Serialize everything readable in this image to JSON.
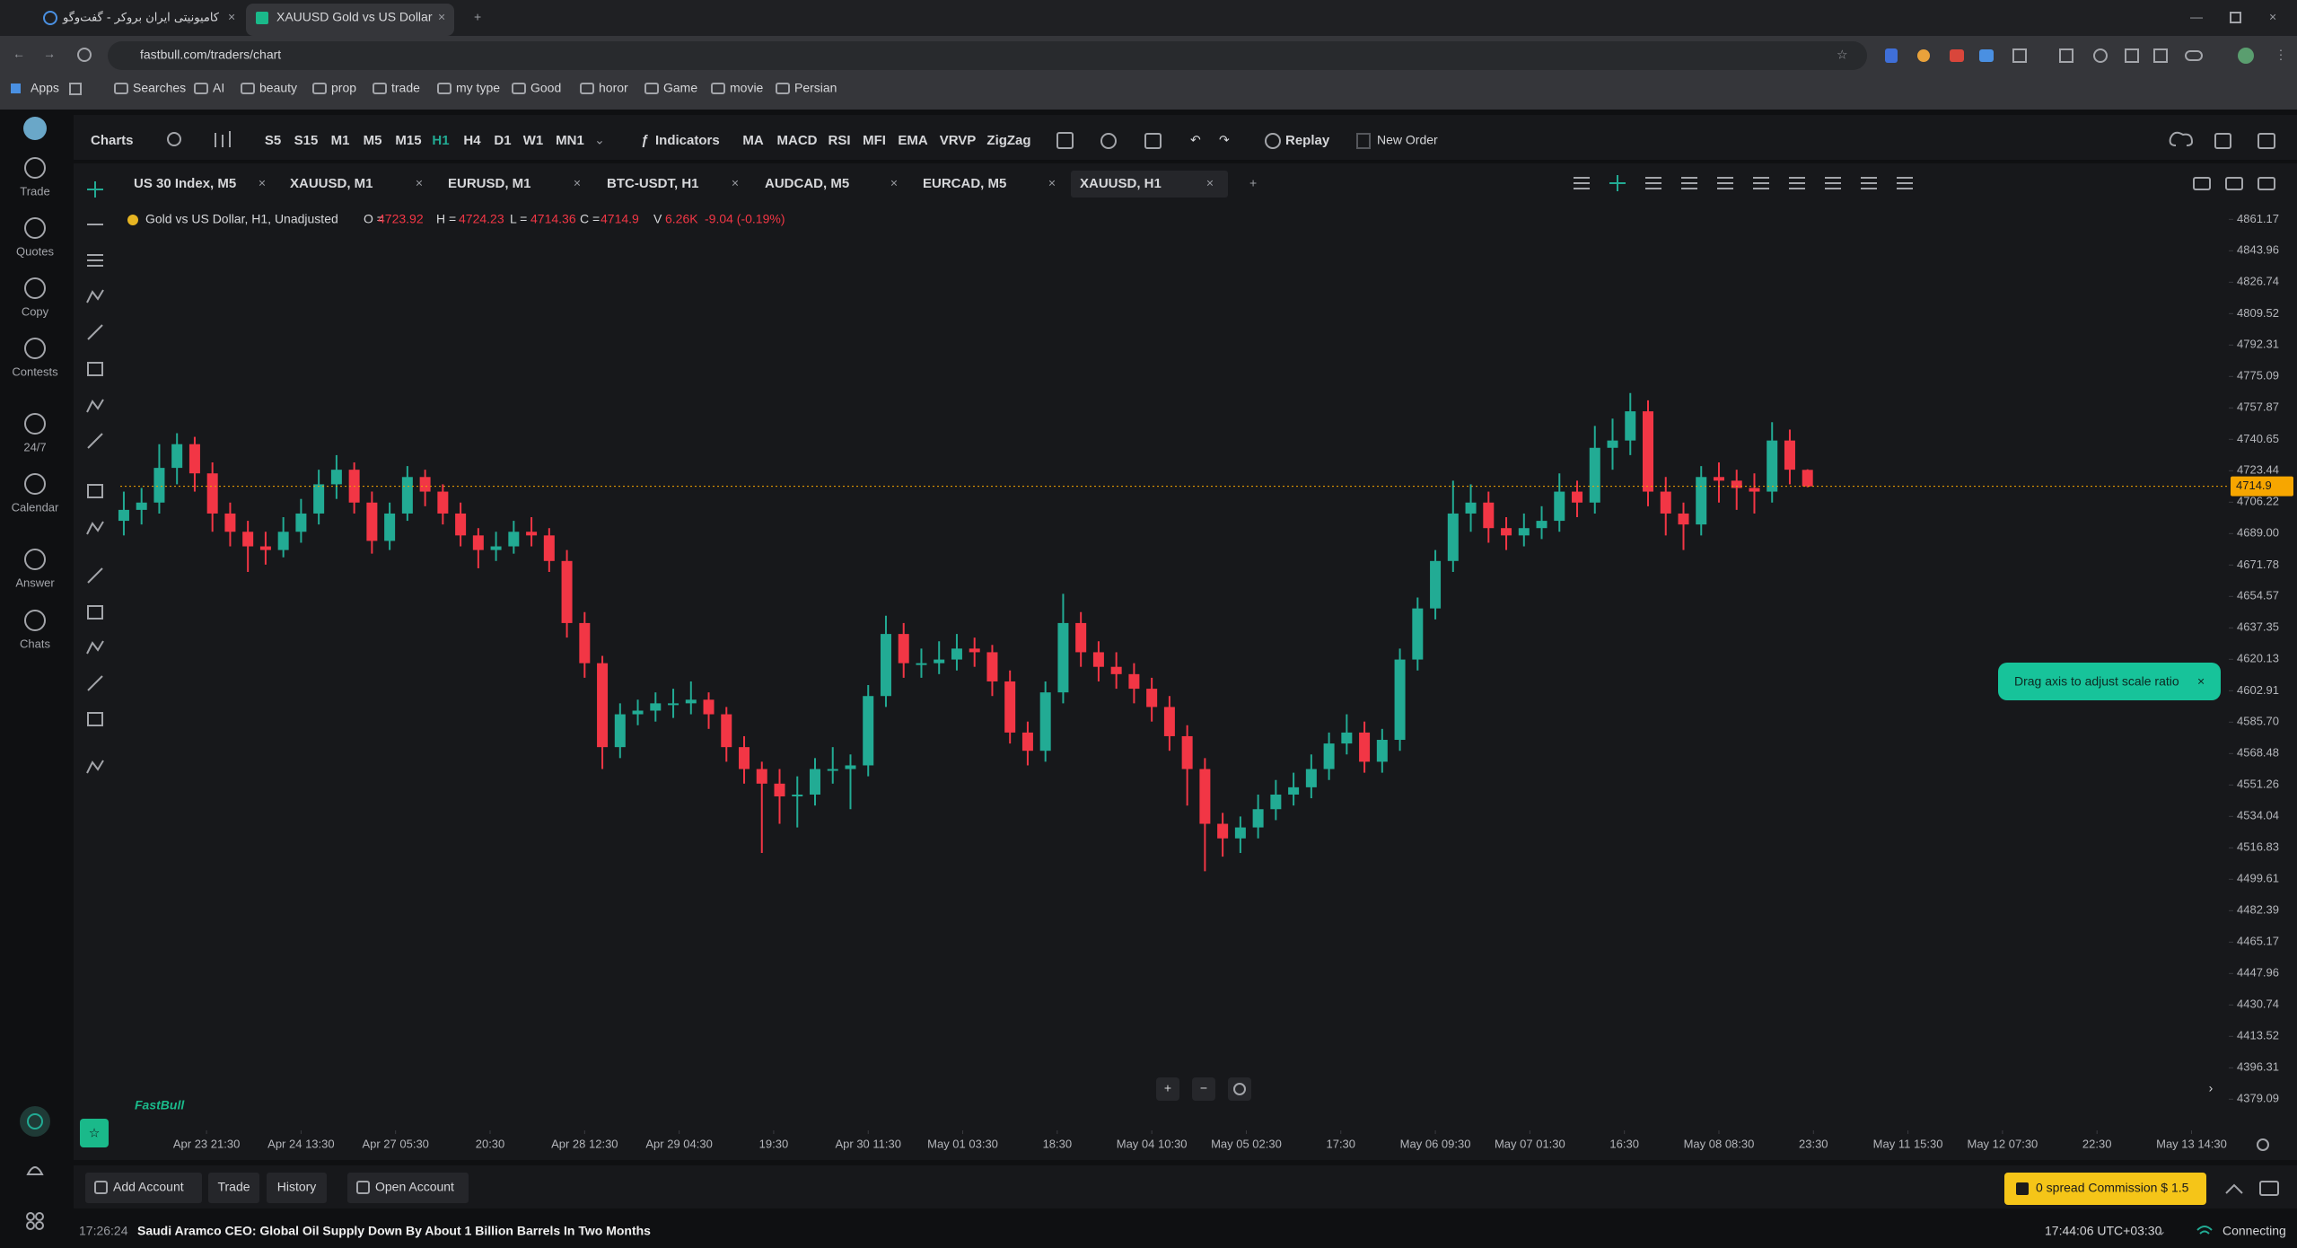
{
  "browser": {
    "tabs": [
      "کامیونیتی ایران بروکر - گفت‌وگو",
      "XAUUSD Gold vs US Dollar"
    ],
    "url": "fastbull.com/traders/chart",
    "bookmarks": [
      "Apps",
      "Searches",
      "AI",
      "beauty",
      "prop",
      "trade",
      "my type",
      "Good",
      "horor",
      "Game",
      "movie",
      "Persian"
    ]
  },
  "sidebar": [
    "Trade",
    "Quotes",
    "Copy",
    "Contests",
    "24/7",
    "Calendar",
    "Answer",
    "Chats"
  ],
  "toolbar": {
    "charts": "Charts",
    "timeframes": [
      "S5",
      "S15",
      "M1",
      "M5",
      "M15",
      "H1",
      "H4",
      "D1",
      "W1",
      "MN1"
    ],
    "active_timeframe": "H1",
    "indicators_button": "Indicators",
    "indicators": [
      "MA",
      "MACD",
      "RSI",
      "MFI",
      "EMA",
      "VRVP",
      "ZigZag"
    ],
    "replay": "Replay",
    "new_order": "New Order"
  },
  "chart_tabs": [
    "US 30 Index, M5",
    "XAUUSD, M1",
    "EURUSD, M1",
    "BTC-USDT, H1",
    "AUDCAD, M5",
    "EURCAD, M5",
    "XAUUSD, H1"
  ],
  "chart_data": {
    "type": "candlestick",
    "title": "Gold vs US Dollar, H1, Unadjusted",
    "legend_labels": [
      "O =",
      "H =",
      "L =",
      "C =",
      "V"
    ],
    "volume": "6.26K",
    "change": "-9.04 (-0.19%)",
    "up_color": "#22ab94",
    "down_color": "#f23645",
    "last_price_color": "#f7a600",
    "grid": false,
    "xlim": [
      -14.6,
      342
    ],
    "ylim": [
      4363,
      4869.2
    ],
    "xticks": [
      {
        "value": 0,
        "label": "Apr 23 21:30"
      },
      {
        "value": 16,
        "label": "Apr 24 13:30"
      },
      {
        "value": 32,
        "label": "Apr 27 05:30"
      },
      {
        "value": 48,
        "label": "20:30"
      },
      {
        "value": 64,
        "label": "Apr 28 12:30"
      },
      {
        "value": 80,
        "label": "Apr 29 04:30"
      },
      {
        "value": 96,
        "label": "19:30"
      },
      {
        "value": 112,
        "label": "Apr 30 11:30"
      },
      {
        "value": 128,
        "label": "May 01 03:30"
      },
      {
        "value": 144,
        "label": "18:30"
      },
      {
        "value": 160,
        "label": "May 04 10:30"
      },
      {
        "value": 176,
        "label": "May 05 02:30"
      },
      {
        "value": 192,
        "label": "17:30"
      },
      {
        "value": 208,
        "label": "May 06 09:30"
      },
      {
        "value": 224,
        "label": "May 07 01:30"
      },
      {
        "value": 240,
        "label": "16:30"
      },
      {
        "value": 256,
        "label": "May 08 08:30"
      },
      {
        "value": 272,
        "label": "23:30"
      },
      {
        "value": 288,
        "label": "May 11 15:30"
      },
      {
        "value": 304,
        "label": "May 12 07:30"
      },
      {
        "value": 320,
        "label": "22:30"
      },
      {
        "value": 336,
        "label": "May 13 14:30"
      }
    ],
    "yticks": [
      4861.17,
      4843.96,
      4826.74,
      4809.52,
      4792.31,
      4775.09,
      4757.87,
      4740.65,
      4723.44,
      4706.22,
      {
        "value": 4689,
        "label": "4689.00"
      },
      4671.78,
      4654.57,
      4637.35,
      4620.13,
      4602.91,
      {
        "value": 4585.7,
        "label": "4585.70"
      },
      4568.48,
      4551.26,
      4534.04,
      4516.83,
      4499.61,
      4482.39,
      4465.17,
      4447.96,
      4430.74,
      4413.52,
      4396.31,
      4379.09
    ],
    "x": [
      -14,
      -11,
      -8,
      -5,
      -2,
      1,
      4,
      7,
      10,
      13,
      16,
      19,
      22,
      25,
      28,
      31,
      34,
      37,
      40,
      43,
      46,
      49,
      52,
      55,
      58,
      61,
      64,
      67,
      70,
      73,
      76,
      79,
      82,
      85,
      88,
      91,
      94,
      97,
      100,
      103,
      106,
      109,
      112,
      115,
      118,
      121,
      124,
      127,
      130,
      133,
      136,
      139,
      142,
      145,
      148,
      151,
      154,
      157,
      160,
      163,
      166,
      169,
      172,
      175,
      178,
      181,
      184,
      187,
      190,
      193,
      196,
      199,
      202,
      205,
      208,
      211,
      214,
      217,
      220,
      223,
      226,
      229,
      232,
      235,
      238,
      241,
      244,
      247,
      250,
      253,
      256,
      259,
      262,
      265,
      268,
      271
    ],
    "candles": [
      [
        4696,
        4712,
        4688,
        4702
      ],
      [
        4702,
        4714,
        4694,
        4706
      ],
      [
        4706,
        4738,
        4700,
        4725
      ],
      [
        4725,
        4744,
        4716,
        4738
      ],
      [
        4738,
        4742,
        4712,
        4722
      ],
      [
        4722,
        4728,
        4690,
        4700
      ],
      [
        4700,
        4706,
        4682,
        4690
      ],
      [
        4690,
        4696,
        4668,
        4682
      ],
      [
        4682,
        4690,
        4672,
        4680
      ],
      [
        4680,
        4698,
        4676,
        4690
      ],
      [
        4690,
        4708,
        4684,
        4700
      ],
      [
        4700,
        4724,
        4694,
        4716
      ],
      [
        4716,
        4732,
        4708,
        4724
      ],
      [
        4724,
        4728,
        4700,
        4706
      ],
      [
        4706,
        4712,
        4678,
        4685
      ],
      [
        4685,
        4706,
        4680,
        4700
      ],
      [
        4700,
        4726,
        4696,
        4720
      ],
      [
        4720,
        4724,
        4704,
        4712
      ],
      [
        4712,
        4716,
        4694,
        4700
      ],
      [
        4700,
        4706,
        4682,
        4688
      ],
      [
        4688,
        4692,
        4670,
        4680
      ],
      [
        4680,
        4690,
        4674,
        4682
      ],
      [
        4682,
        4696,
        4678,
        4690
      ],
      [
        4690,
        4698,
        4682,
        4688
      ],
      [
        4688,
        4692,
        4668,
        4674
      ],
      [
        4674,
        4680,
        4632,
        4640
      ],
      [
        4640,
        4646,
        4610,
        4618
      ],
      [
        4618,
        4622,
        4560,
        4572
      ],
      [
        4572,
        4596,
        4566,
        4590
      ],
      [
        4590,
        4598,
        4584,
        4592
      ],
      [
        4592,
        4602,
        4586,
        4596
      ],
      [
        4596,
        4604,
        4588,
        4596
      ],
      [
        4596,
        4608,
        4590,
        4598
      ],
      [
        4598,
        4602,
        4582,
        4590
      ],
      [
        4590,
        4594,
        4564,
        4572
      ],
      [
        4572,
        4578,
        4552,
        4560
      ],
      [
        4560,
        4564,
        4514,
        4552
      ],
      [
        4552,
        4560,
        4530,
        4545
      ],
      [
        4545,
        4556,
        4528,
        4546
      ],
      [
        4546,
        4566,
        4540,
        4560
      ],
      [
        4560,
        4572,
        4552,
        4560
      ],
      [
        4560,
        4568,
        4538,
        4562
      ],
      [
        4562,
        4606,
        4556,
        4600
      ],
      [
        4600,
        4644,
        4594,
        4634
      ],
      [
        4634,
        4640,
        4610,
        4618
      ],
      [
        4618,
        4626,
        4610,
        4618
      ],
      [
        4618,
        4630,
        4612,
        4620
      ],
      [
        4620,
        4634,
        4614,
        4626
      ],
      [
        4626,
        4632,
        4616,
        4624
      ],
      [
        4624,
        4628,
        4600,
        4608
      ],
      [
        4608,
        4614,
        4574,
        4580
      ],
      [
        4580,
        4586,
        4562,
        4570
      ],
      [
        4570,
        4608,
        4564,
        4602
      ],
      [
        4602,
        4656,
        4596,
        4640
      ],
      [
        4640,
        4646,
        4616,
        4624
      ],
      [
        4624,
        4630,
        4608,
        4616
      ],
      [
        4616,
        4624,
        4604,
        4612
      ],
      [
        4612,
        4618,
        4596,
        4604
      ],
      [
        4604,
        4610,
        4586,
        4594
      ],
      [
        4594,
        4600,
        4570,
        4578
      ],
      [
        4578,
        4584,
        4540,
        4560
      ],
      [
        4560,
        4566,
        4504,
        4530
      ],
      [
        4530,
        4536,
        4512,
        4522
      ],
      [
        4522,
        4534,
        4514,
        4528
      ],
      [
        4528,
        4546,
        4522,
        4538
      ],
      [
        4538,
        4554,
        4532,
        4546
      ],
      [
        4546,
        4558,
        4540,
        4550
      ],
      [
        4550,
        4568,
        4544,
        4560
      ],
      [
        4560,
        4580,
        4554,
        4574
      ],
      [
        4574,
        4590,
        4568,
        4580
      ],
      [
        4580,
        4586,
        4558,
        4564
      ],
      [
        4564,
        4582,
        4558,
        4576
      ],
      [
        4576,
        4626,
        4570,
        4620
      ],
      [
        4620,
        4654,
        4614,
        4648
      ],
      [
        4648,
        4680,
        4642,
        4674
      ],
      [
        4674,
        4718,
        4668,
        4700
      ],
      [
        4700,
        4716,
        4690,
        4706
      ],
      [
        4706,
        4712,
        4684,
        4692
      ],
      [
        4692,
        4698,
        4680,
        4688
      ],
      [
        4688,
        4700,
        4682,
        4692
      ],
      [
        4692,
        4704,
        4686,
        4696
      ],
      [
        4696,
        4722,
        4690,
        4712
      ],
      [
        4712,
        4718,
        4698,
        4706
      ],
      [
        4706,
        4748,
        4700,
        4736
      ],
      [
        4736,
        4752,
        4724,
        4740
      ],
      [
        4740,
        4766,
        4732,
        4756
      ],
      [
        4756,
        4762,
        4704,
        4712
      ],
      [
        4712,
        4720,
        4688,
        4700
      ],
      [
        4700,
        4706,
        4680,
        4694
      ],
      [
        4694,
        4726,
        4688,
        4720
      ],
      [
        4720,
        4728,
        4706,
        4718
      ],
      [
        4718,
        4724,
        4702,
        4714
      ],
      [
        4714,
        4722,
        4700,
        4712
      ],
      [
        4712,
        4750,
        4706,
        4740
      ],
      [
        4740,
        4746,
        4716,
        4724
      ],
      [
        4723.92,
        4724.23,
        4714.36,
        4714.9
      ]
    ]
  },
  "tooltip": "Drag axis to adjust scale ratio",
  "logo": "FastBull",
  "bottom_bar": {
    "buttons": [
      "Add Account",
      "Trade",
      "History",
      "Open Account"
    ],
    "promo": "0 spread Commission $ 1.5"
  },
  "ticker": {
    "time": "17:26:24",
    "headline": "Saudi Aramco CEO: Global Oil Supply Down By About 1 Billion Barrels In Two Months",
    "clock": "17:44:06 UTC+03:30",
    "status": "Connecting"
  }
}
